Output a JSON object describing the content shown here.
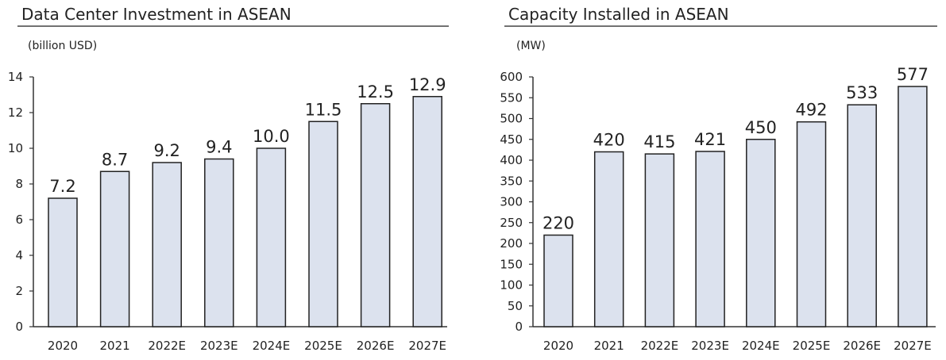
{
  "colors": {
    "bar_fill": "#dce2ee",
    "bar_stroke": "#222222",
    "axis": "#333333"
  },
  "chart_data": [
    {
      "type": "bar",
      "title": "Data Center Investment in ASEAN",
      "ylabel": "(billion USD)",
      "categories": [
        "2020",
        "2021",
        "2022E",
        "2023E",
        "2024E",
        "2025E",
        "2026E",
        "2027E"
      ],
      "values": [
        7.2,
        8.7,
        9.2,
        9.4,
        10.0,
        11.5,
        12.5,
        12.9
      ],
      "data_labels": [
        "7.2",
        "8.7",
        "9.2",
        "9.4",
        "10.0",
        "11.5",
        "12.5",
        "12.9"
      ],
      "ylim": [
        0,
        14
      ],
      "yticks": [
        0,
        2,
        4,
        6,
        8,
        10,
        12,
        14
      ],
      "grid": false
    },
    {
      "type": "bar",
      "title": "Capacity Installed in ASEAN",
      "ylabel": "(MW)",
      "categories": [
        "2020",
        "2021",
        "2022E",
        "2023E",
        "2024E",
        "2025E",
        "2026E",
        "2027E"
      ],
      "values": [
        220,
        420,
        415,
        421,
        450,
        492,
        533,
        577
      ],
      "data_labels": [
        "220",
        "420",
        "415",
        "421",
        "450",
        "492",
        "533",
        "577"
      ],
      "ylim": [
        0,
        600
      ],
      "yticks": [
        0,
        50,
        100,
        150,
        200,
        250,
        300,
        350,
        400,
        450,
        500,
        550,
        600
      ],
      "grid": false
    }
  ]
}
